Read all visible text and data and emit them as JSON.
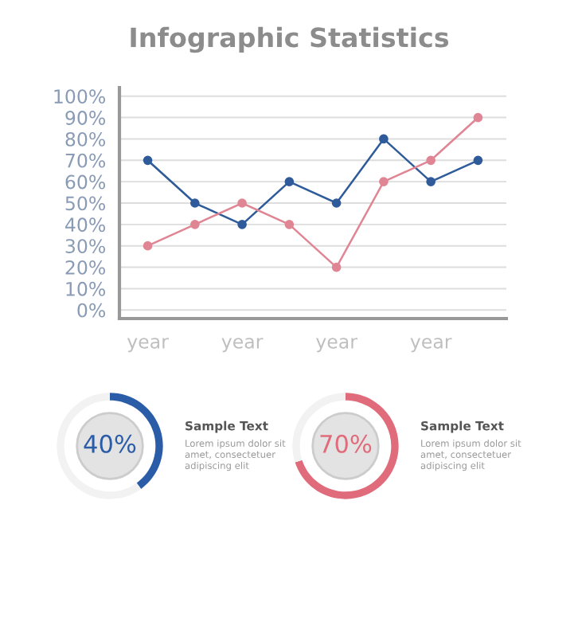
{
  "chart_data": [
    {
      "type": "line",
      "title": "Infographic Statistics",
      "categories": [
        "year",
        null,
        "year",
        null,
        "year",
        null,
        "year",
        null
      ],
      "series": [
        {
          "color": "#2f5b9a",
          "values": [
            70,
            50,
            40,
            60,
            50,
            80,
            60,
            70
          ]
        },
        {
          "color": "#e08593",
          "values": [
            30,
            40,
            50,
            40,
            20,
            60,
            70,
            90
          ]
        }
      ],
      "ylim": [
        -4,
        104
      ],
      "yticks": [
        {
          "value": 0,
          "label": "0%"
        },
        {
          "value": 10,
          "label": "10%"
        },
        {
          "value": 20,
          "label": "20%"
        },
        {
          "value": 30,
          "label": "30%"
        },
        {
          "value": 40,
          "label": "40%"
        },
        {
          "value": 50,
          "label": "50%"
        },
        {
          "value": 60,
          "label": "60%"
        },
        {
          "value": 70,
          "label": "70%"
        },
        {
          "value": 80,
          "label": "80%"
        },
        {
          "value": 90,
          "label": "90%"
        },
        {
          "value": 100,
          "label": "100%"
        }
      ],
      "grid": "y",
      "marker": "circle"
    },
    {
      "type": "donut",
      "categories": [
        null,
        null
      ],
      "values": [
        40,
        60
      ],
      "colors": [
        "#2b5ca8",
        "#f2f2f2"
      ],
      "value_labels": [
        "40%",
        null
      ],
      "annotations": [
        "Sample Text",
        "Lorem ipsum dolor sit\namet, consectetuer\nadipiscing elit"
      ]
    },
    {
      "type": "donut",
      "categories": [
        null,
        null
      ],
      "values": [
        70,
        30
      ],
      "colors": [
        "#e06b7a",
        "#f2f2f2"
      ],
      "value_labels": [
        "70%",
        null
      ],
      "annotations": [
        "Sample Text",
        "Lorem ipsum dolor sit\namet, consectetuer\nadipiscing elit"
      ]
    }
  ]
}
